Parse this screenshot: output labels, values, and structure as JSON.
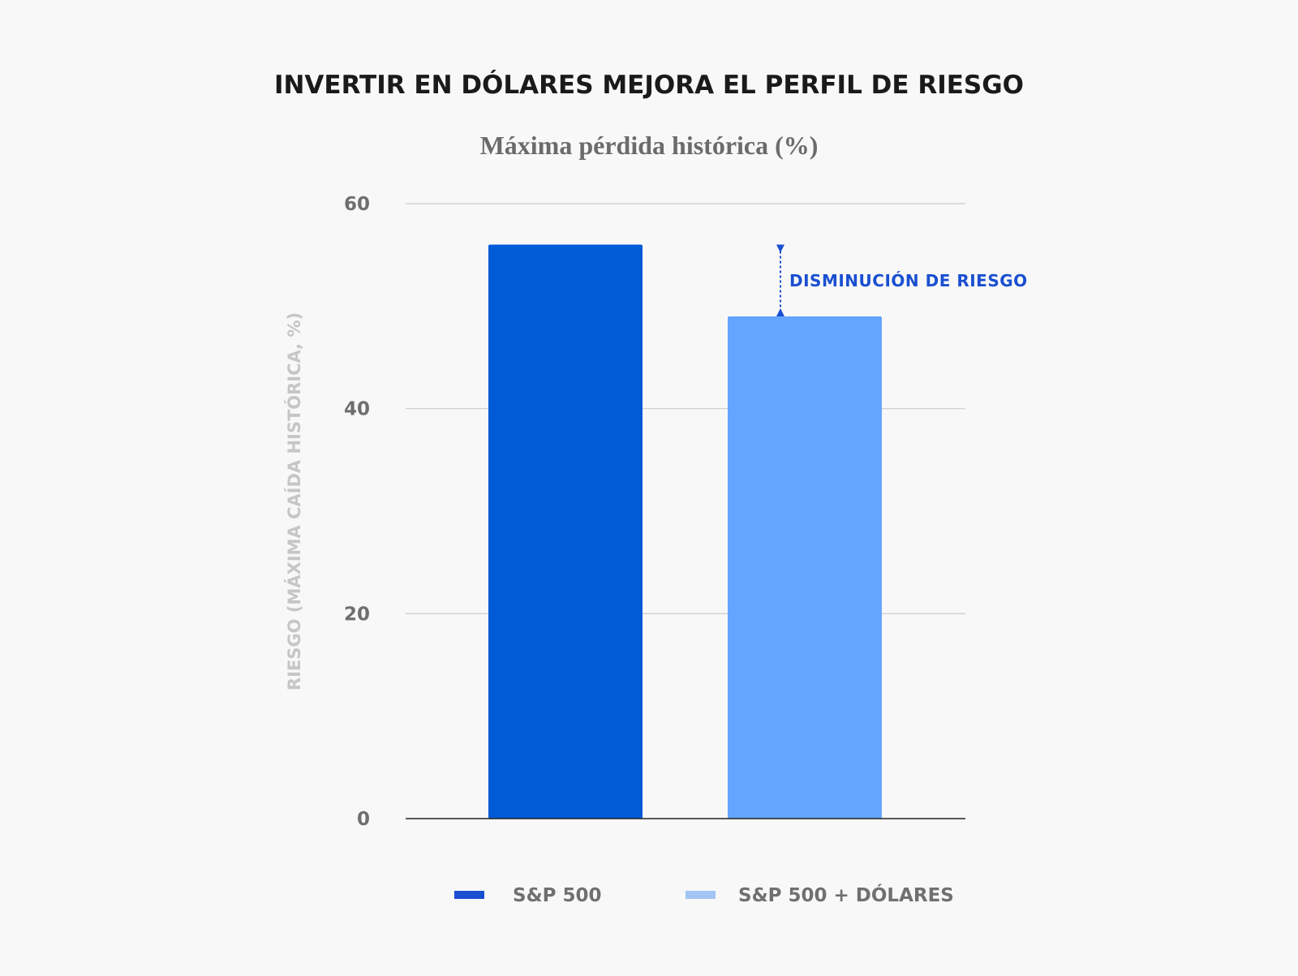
{
  "colors": {
    "background": "#f8f8f8",
    "annotation": "#1a4fd1"
  },
  "chart_data": {
    "type": "bar",
    "title": "INVERTIR EN DÓLARES MEJORA EL PERFIL DE RIESGO",
    "subtitle": "Máxima pérdida histórica (%)",
    "xlabel": "",
    "ylabel": "RIESGO (MÁXIMA CAÍDA HISTÓRICA, %)",
    "ylim": [
      0,
      60
    ],
    "yticks": [
      0,
      20,
      40,
      60
    ],
    "grid": true,
    "legend_position": "bottom",
    "categories": [
      "S&P 500",
      "S&P 500 + DÓLARES"
    ],
    "series": [
      {
        "name": "S&P 500",
        "values": [
          56,
          null
        ],
        "color": "#005bd7",
        "legend_color": "#1a4fd1"
      },
      {
        "name": "S&P 500 + DÓLARES",
        "values": [
          null,
          49
        ],
        "color": "#64a5ff",
        "legend_color": "#a3c4f5"
      }
    ],
    "annotations": [
      {
        "text": "DISMINUCIÓN DE RIESGO",
        "from": 56,
        "to": 49,
        "category_index": 1
      }
    ]
  }
}
